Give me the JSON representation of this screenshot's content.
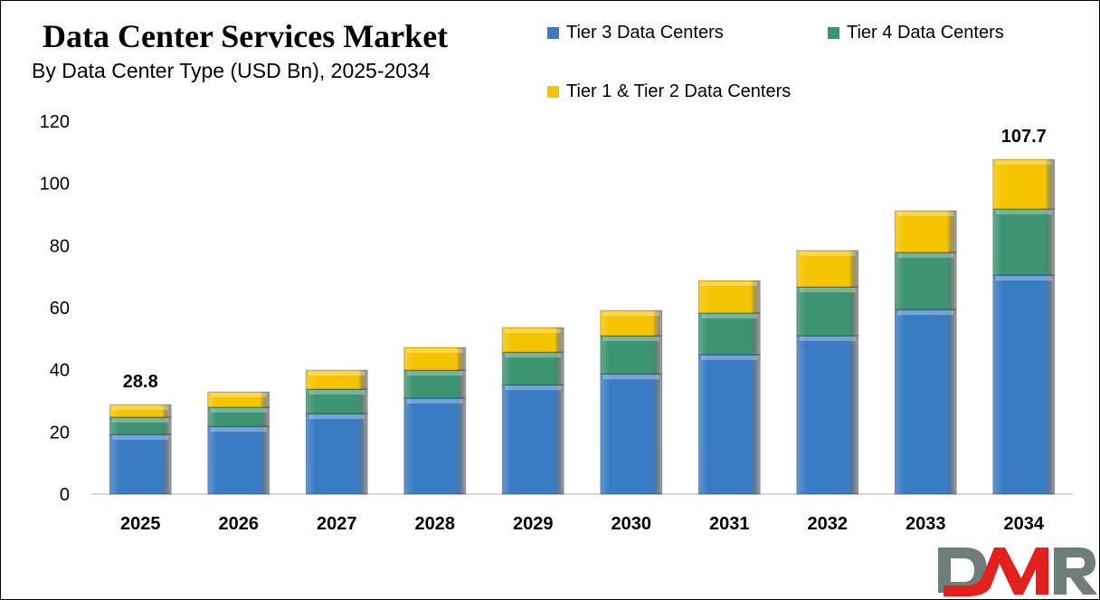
{
  "chart_data": {
    "type": "bar",
    "stacked": true,
    "title": "Data Center Services Market",
    "subtitle": "By Data Center Type (USD Bn), 2025-2034",
    "xlabel": "",
    "ylabel": "",
    "ylim": [
      0,
      120
    ],
    "yticks": [
      0,
      20,
      40,
      60,
      80,
      100,
      120
    ],
    "grid": false,
    "legend_position": "top-right",
    "categories": [
      "2025",
      "2026",
      "2027",
      "2028",
      "2029",
      "2030",
      "2031",
      "2032",
      "2033",
      "2034"
    ],
    "series": [
      {
        "name": "Tier 3 Data Centers",
        "color": "#3a7cc4",
        "values": [
          19.2,
          21.8,
          25.9,
          30.9,
          35.2,
          38.7,
          44.9,
          51.0,
          59.4,
          70.5
        ]
      },
      {
        "name": "Tier 4 Data Centers",
        "color": "#3d9470",
        "values": [
          5.6,
          6.2,
          7.9,
          9.0,
          10.5,
          12.3,
          13.4,
          15.7,
          18.4,
          21.3
        ]
      },
      {
        "name": "Tier 1 & Tier 2 Data Centers",
        "color": "#f5c400",
        "values": [
          4.0,
          4.9,
          6.1,
          7.3,
          7.9,
          8.1,
          10.4,
          11.7,
          13.4,
          15.9
        ]
      }
    ],
    "annotations": [
      {
        "category": "2025",
        "text": "28.8"
      },
      {
        "category": "2034",
        "text": "107.7"
      }
    ]
  },
  "logo": {
    "text": "DMR"
  }
}
